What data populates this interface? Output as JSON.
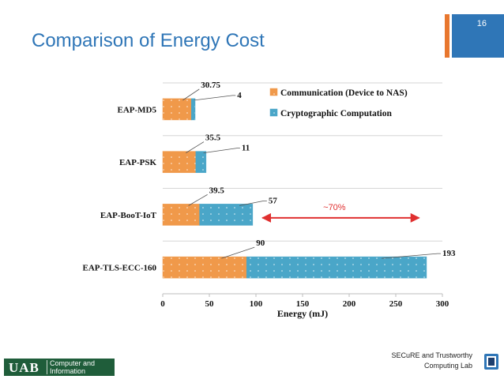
{
  "slide": {
    "title": "Comparison of Energy Cost",
    "page_number": "16"
  },
  "footer": {
    "logo_mark": "UAB",
    "logo_line1": "Computer and",
    "logo_line2": "Information Sciences",
    "lab_line1": "SECuRE and Trustworthy",
    "lab_line2": "Computing Lab"
  },
  "colors": {
    "accent_orange": "#e8772e",
    "accent_blue": "#2f76b7",
    "comm": "#f0994a",
    "crypto": "#4aa6c8",
    "arrow": "#e03030"
  },
  "chart_data": {
    "type": "bar",
    "orientation": "horizontal",
    "stacked": true,
    "categories": [
      "EAP-MD5",
      "EAP-PSK",
      "EAP-BooT-IoT",
      "EAP-TLS-ECC-160"
    ],
    "series": [
      {
        "name": "Communication (Device to NAS)",
        "values": [
          30.75,
          35.5,
          39.5,
          90
        ],
        "labels": [
          "30.75",
          "35.5",
          "39.5",
          "90"
        ]
      },
      {
        "name": "Cryptographic Computation",
        "values": [
          4,
          11,
          57,
          193
        ],
        "labels": [
          "4",
          "11",
          "57",
          "193"
        ]
      }
    ],
    "xlabel": "Energy (mJ)",
    "xlim": [
      0,
      300
    ],
    "xticks": [
      0,
      50,
      100,
      150,
      200,
      250,
      300
    ],
    "grid": "horizontal",
    "legend": "top-right",
    "annotation": {
      "text": "~70%",
      "from": 107,
      "to": 275
    }
  }
}
